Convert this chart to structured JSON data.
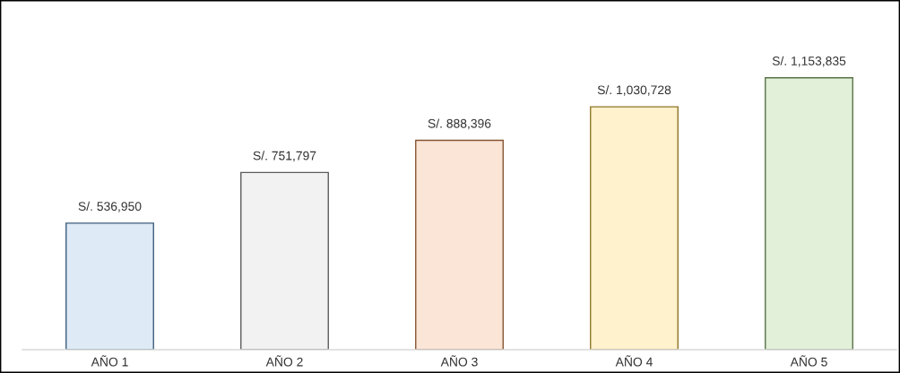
{
  "chart_data": {
    "type": "bar",
    "categories": [
      "AÑO 1",
      "AÑO 2",
      "AÑO 3",
      "AÑO 4",
      "AÑO 5"
    ],
    "values": [
      536950,
      751797,
      888396,
      1030728,
      1153835
    ],
    "colors": [
      "#deebf7",
      "#f2f2f2",
      "#fbe5d6",
      "#fff2cc",
      "#e2f0d9"
    ],
    "value_labels": [
      "S/. 536,950",
      "S/. 751,797",
      "S/. 888,396",
      "S/. 1,030,728",
      "S/. 1,153,835"
    ],
    "tick_labels": "x"
  }
}
